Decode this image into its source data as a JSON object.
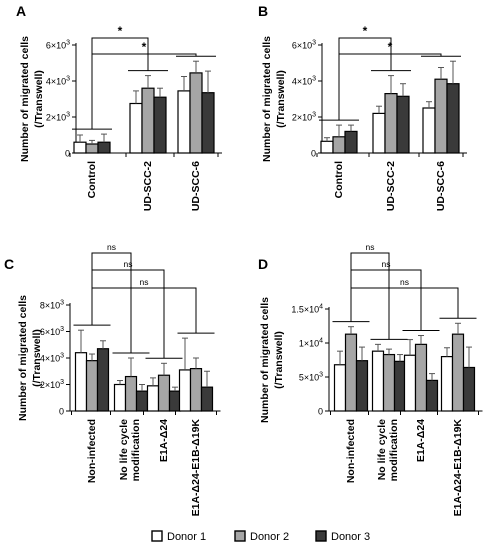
{
  "chart_data": [
    {
      "panel": "A",
      "type": "bar",
      "ylabel": "Number of migrated cells",
      "ylabel2": "(/Transwell)",
      "ylim": [
        0,
        6000
      ],
      "yticks": [
        {
          "value": 6000,
          "base": "6×10",
          "exp": "3"
        },
        {
          "value": 4000,
          "base": "4×10",
          "exp": "3"
        },
        {
          "value": 2000,
          "base": "2×10",
          "exp": "3"
        },
        {
          "value": 0,
          "base": "0",
          "exp": ""
        }
      ],
      "categories": [
        "Control",
        "UD-SCC-2",
        "UD-SCC-6"
      ],
      "series": [
        {
          "name": "Donor 1",
          "values": [
            600,
            2750,
            3450
          ],
          "errors": [
            400,
            700,
            800
          ]
        },
        {
          "name": "Donor 2",
          "values": [
            500,
            3600,
            4450
          ],
          "errors": [
            200,
            700,
            650
          ]
        },
        {
          "name": "Donor 3",
          "values": [
            600,
            3100,
            3350
          ],
          "errors": [
            450,
            500,
            1200
          ]
        }
      ],
      "comparisons": [
        {
          "from": 0,
          "to": 1,
          "label": "*"
        },
        {
          "from": 0,
          "to": 2,
          "label": "*"
        }
      ]
    },
    {
      "panel": "B",
      "type": "bar",
      "ylabel": "Number of migrated cells",
      "ylabel2": "(/Transwell)",
      "ylim": [
        0,
        6000
      ],
      "yticks": [
        {
          "value": 6000,
          "base": "6×10",
          "exp": "3"
        },
        {
          "value": 4000,
          "base": "4×10",
          "exp": "3"
        },
        {
          "value": 2000,
          "base": "2×10",
          "exp": "3"
        },
        {
          "value": 0,
          "base": "0",
          "exp": ""
        }
      ],
      "categories": [
        "Control",
        "UD-SCC-2",
        "UD-SCC-6"
      ],
      "series": [
        {
          "name": "Donor 1",
          "values": [
            650,
            2200,
            2500
          ],
          "errors": [
            200,
            400,
            350
          ]
        },
        {
          "name": "Donor 2",
          "values": [
            900,
            3300,
            4100
          ],
          "errors": [
            650,
            1000,
            650
          ]
        },
        {
          "name": "Donor 3",
          "values": [
            1200,
            3150,
            3850
          ],
          "errors": [
            350,
            700,
            1250
          ]
        }
      ],
      "comparisons": [
        {
          "from": 0,
          "to": 1,
          "label": "*"
        },
        {
          "from": 0,
          "to": 2,
          "label": "*"
        }
      ]
    },
    {
      "panel": "C",
      "type": "bar",
      "ylabel": "Number of migrated cells",
      "ylabel2": "(/Transwell)",
      "ylim": [
        0,
        8000
      ],
      "yticks": [
        {
          "value": 8000,
          "base": "8×10",
          "exp": "3"
        },
        {
          "value": 6000,
          "base": "6×10",
          "exp": "3"
        },
        {
          "value": 4000,
          "base": "4×10",
          "exp": "3"
        },
        {
          "value": 2000,
          "base": "2×10",
          "exp": "3"
        },
        {
          "value": 0,
          "base": "0",
          "exp": ""
        }
      ],
      "categories": [
        "Non-infected",
        "No life cycle|modification",
        "E1A-Δ24",
        "E1A-Δ24-E1B-Δ19K"
      ],
      "series": [
        {
          "name": "Donor 1",
          "values": [
            4400,
            2000,
            1900,
            3100
          ],
          "errors": [
            1700,
            300,
            600,
            2400
          ]
        },
        {
          "name": "Donor 2",
          "values": [
            3800,
            2600,
            2700,
            3200
          ],
          "errors": [
            500,
            1400,
            900,
            800
          ]
        },
        {
          "name": "Donor 3",
          "values": [
            4700,
            1500,
            1500,
            1800
          ],
          "errors": [
            600,
            500,
            300,
            1200
          ]
        }
      ],
      "comparisons": [
        {
          "from": 0,
          "to": 1,
          "label": "ns"
        },
        {
          "from": 0,
          "to": 2,
          "label": "ns"
        },
        {
          "from": 0,
          "to": 3,
          "label": "ns"
        }
      ]
    },
    {
      "panel": "D",
      "type": "bar",
      "ylabel": "Number of migrated cells",
      "ylabel2": "(/Transwell)",
      "ylim": [
        0,
        15000
      ],
      "yticks": [
        {
          "value": 15000,
          "base": "1.5×10",
          "exp": "4"
        },
        {
          "value": 10000,
          "base": "1×10",
          "exp": "4"
        },
        {
          "value": 5000,
          "base": "5×10",
          "exp": "3"
        },
        {
          "value": 0,
          "base": "0",
          "exp": ""
        }
      ],
      "categories": [
        "Non-infected",
        "No life cycle|modification",
        "E1A-Δ24",
        "E1A-Δ24-E1B-Δ19K"
      ],
      "series": [
        {
          "name": "Donor 1",
          "values": [
            6800,
            8800,
            8200,
            8000
          ],
          "errors": [
            2000,
            1000,
            2300,
            1300
          ]
        },
        {
          "name": "Donor 2",
          "values": [
            11300,
            8300,
            9800,
            11300
          ],
          "errors": [
            1100,
            800,
            1300,
            1600
          ]
        },
        {
          "name": "Donor 3",
          "values": [
            7400,
            7300,
            4500,
            6400
          ],
          "errors": [
            2000,
            1000,
            1000,
            3000
          ]
        }
      ],
      "comparisons": [
        {
          "from": 0,
          "to": 1,
          "label": "ns"
        },
        {
          "from": 0,
          "to": 2,
          "label": "ns"
        },
        {
          "from": 0,
          "to": 3,
          "label": "ns"
        }
      ]
    }
  ],
  "legend": {
    "position": "bottom",
    "entries": [
      "Donor 1",
      "Donor 2",
      "Donor 3"
    ]
  },
  "colors": {
    "donor1": "#ffffff",
    "donor2": "#a6a6a6",
    "donor3": "#3a3a3a",
    "stroke": "#000000"
  }
}
